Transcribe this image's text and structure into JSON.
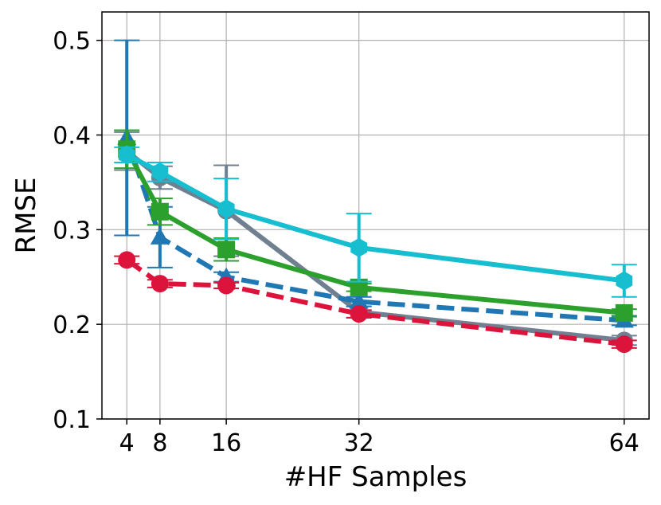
{
  "chart_data": {
    "type": "line",
    "title": "",
    "xlabel": "#HF Samples",
    "ylabel": "RMSE",
    "x": [
      4,
      8,
      16,
      32,
      64
    ],
    "x_ticks": [
      4,
      8,
      16,
      32,
      64
    ],
    "y_ticks": [
      0.1,
      0.2,
      0.3,
      0.4,
      0.5
    ],
    "y_tick_labels": [
      "0.1",
      "0.2",
      "0.3",
      "0.4",
      "0.5"
    ],
    "xlim": [
      1,
      67
    ],
    "ylim": [
      0.1,
      0.53
    ],
    "grid": true,
    "series": [
      {
        "color": "#708090",
        "linestyle": "solid",
        "marker": "circle",
        "values": [
          0.383,
          0.355,
          0.32,
          0.213,
          0.183
        ],
        "errors": [
          0.02,
          0.012,
          0.048,
          0.006,
          0.005
        ]
      },
      {
        "color": "#1f77b4",
        "linestyle": "dashed",
        "marker": "triangle",
        "values": [
          0.397,
          0.292,
          0.25,
          0.224,
          0.204
        ],
        "errors": [
          0.103,
          0.032,
          0.005,
          0.005,
          0.005
        ]
      },
      {
        "color": "#2ca02c",
        "linestyle": "solid",
        "marker": "square",
        "values": [
          0.385,
          0.319,
          0.279,
          0.239,
          0.212
        ],
        "errors": [
          0.02,
          0.014,
          0.012,
          0.004,
          0.004
        ]
      },
      {
        "color": "#17becf",
        "linestyle": "solid",
        "marker": "hexagon",
        "values": [
          0.379,
          0.361,
          0.322,
          0.281,
          0.246
        ],
        "errors": [
          0.008,
          0.01,
          0.032,
          0.036,
          0.017
        ]
      },
      {
        "color": "#dc143c",
        "linestyle": "dashed",
        "marker": "circle",
        "values": [
          0.268,
          0.243,
          0.241,
          0.211,
          0.179
        ],
        "errors": [
          0.004,
          0.004,
          0.003,
          0.004,
          0.004
        ]
      }
    ]
  }
}
